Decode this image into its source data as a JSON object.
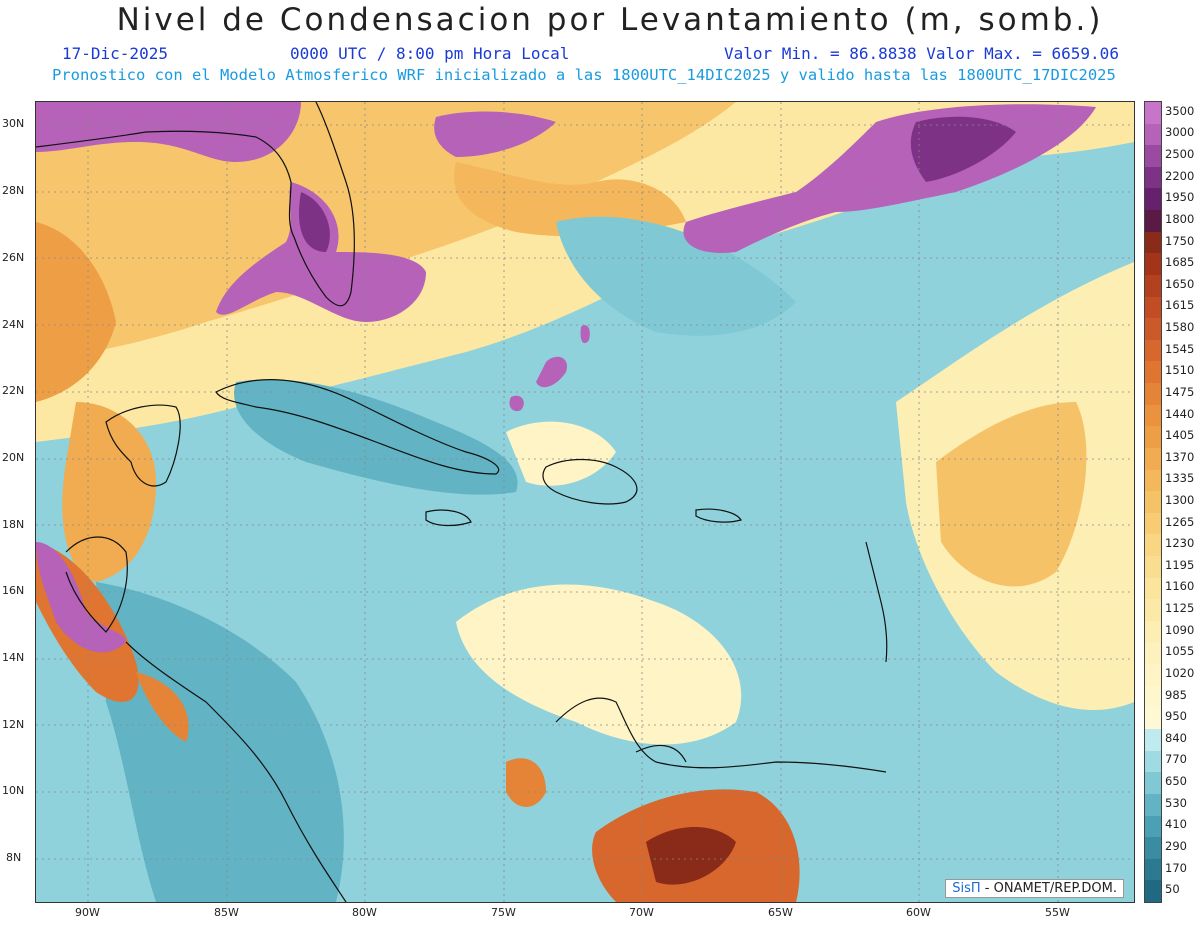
{
  "title": "Nivel de Condensacion por Levantamiento (m, somb.)",
  "subtitle": {
    "date": "17-Dic-2025",
    "time": "0000 UTC / 8:00 pm Hora Local",
    "minmax": "Valor Min. = 86.8838  Valor Max. = 6659.06",
    "model": "Pronostico con el Modelo Atmosferico WRF inicializado a las 1800UTC_14DIC2025 y valido hasta las  1800UTC_17DIC2025"
  },
  "credit": {
    "logo": "SisΠ",
    "text": " - ONAMET/REP.DOM."
  },
  "lat_labels": [
    "30N",
    "28N",
    "26N",
    "24N",
    "22N",
    "20N",
    "18N",
    "16N",
    "14N",
    "12N",
    "10N",
    "8N"
  ],
  "lon_labels": [
    "90W",
    "85W",
    "80W",
    "75W",
    "70W",
    "65W",
    "60W",
    "55W"
  ],
  "colorbar": {
    "labels": [
      "3500",
      "3000",
      "2500",
      "2200",
      "1950",
      "1800",
      "1750",
      "1685",
      "1650",
      "1615",
      "1580",
      "1545",
      "1510",
      "1475",
      "1440",
      "1405",
      "1370",
      "1335",
      "1300",
      "1265",
      "1230",
      "1195",
      "1160",
      "1125",
      "1090",
      "1055",
      "1020",
      "985",
      "950",
      "840",
      "770",
      "650",
      "530",
      "410",
      "290",
      "170",
      "50"
    ],
    "colors": [
      "#c774c9",
      "#b562b8",
      "#9a4aa0",
      "#7e3286",
      "#65216b",
      "#5a1a45",
      "#8a2a18",
      "#a3341a",
      "#b3401f",
      "#c24d24",
      "#cc5a28",
      "#d7672c",
      "#df7530",
      "#e58436",
      "#ea923e",
      "#ee9f46",
      "#f1ab50",
      "#f4b75c",
      "#f6c268",
      "#f8cc75",
      "#f9d682",
      "#fadd8e",
      "#fbe49c",
      "#fce9a8",
      "#fdeeb4",
      "#fdf1be",
      "#fef4c6",
      "#fef6cc",
      "#fef8d4",
      "#bfeaee",
      "#9fdbe3",
      "#7fc8d4",
      "#62b4c4",
      "#4aa0b4",
      "#3a8ca2",
      "#2c7a92",
      "#1f6a82"
    ]
  }
}
